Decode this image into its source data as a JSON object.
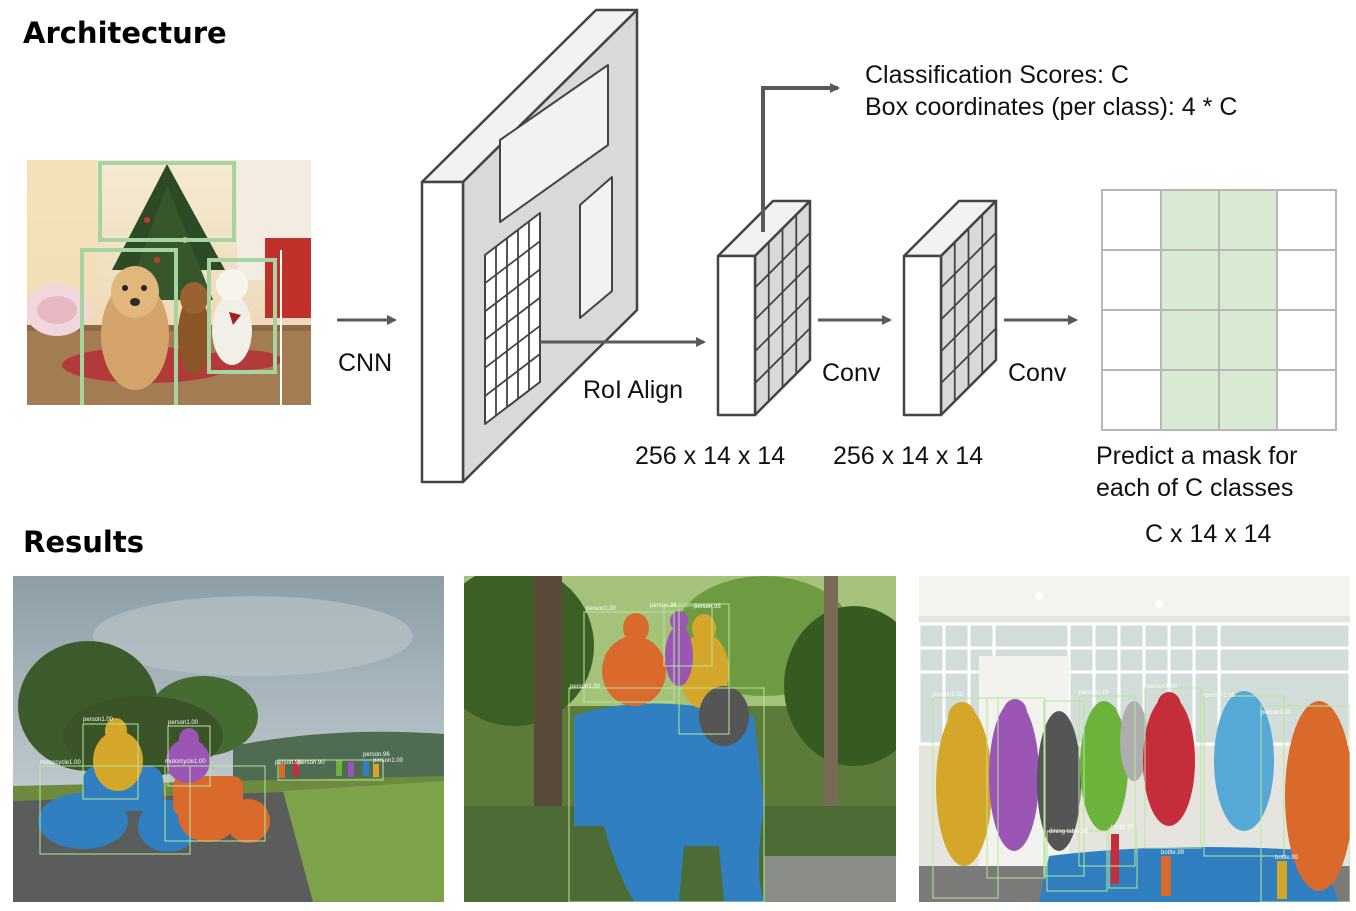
{
  "sections": {
    "architecture_title": "Architecture",
    "results_title": "Results"
  },
  "labels": {
    "cnn": "CNN",
    "roi_align": "RoI Align",
    "conv1": "Conv",
    "conv2": "Conv",
    "dim1": "256 x 14 x 14",
    "dim2": "256 x 14 x 14",
    "class_scores": "Classification Scores: C",
    "box_coords": "Box coordinates (per class): 4 * C",
    "predict_line1": "Predict a mask for",
    "predict_line2": "each of C classes",
    "mask_dim": "C x 14 x 14"
  },
  "results_images": [
    {
      "name": "motorcycles-hillside",
      "detections": [
        "motorcycle1.00",
        "person1.00",
        "person1.00",
        "motorcycle1.00",
        "person.96",
        "person.90",
        "person.99",
        "person1.00"
      ]
    },
    {
      "name": "people-riding-elephant",
      "detections": [
        "person1.00",
        "person.96",
        "person.98",
        "person1.00",
        "elephant1.00"
      ]
    },
    {
      "name": "people-in-room",
      "detections": [
        "person1.00",
        "person1.00",
        "person1.00",
        "person1.00",
        "person1.00",
        "dining table.96",
        "bottle.99",
        "bottle.99",
        "bottle.99"
      ]
    }
  ],
  "colors": {
    "box_green": "#a7d3a0",
    "mask_fill": "#d9ead3",
    "feature_gray": "#d9d9d9",
    "arrow_gray": "#595959",
    "seg_blue": "#2f7fc1",
    "seg_orange": "#d96a2c",
    "seg_yellow": "#d4a62a",
    "seg_purple": "#9b55b5",
    "seg_green": "#6bb33b",
    "seg_red": "#c62d3a"
  }
}
